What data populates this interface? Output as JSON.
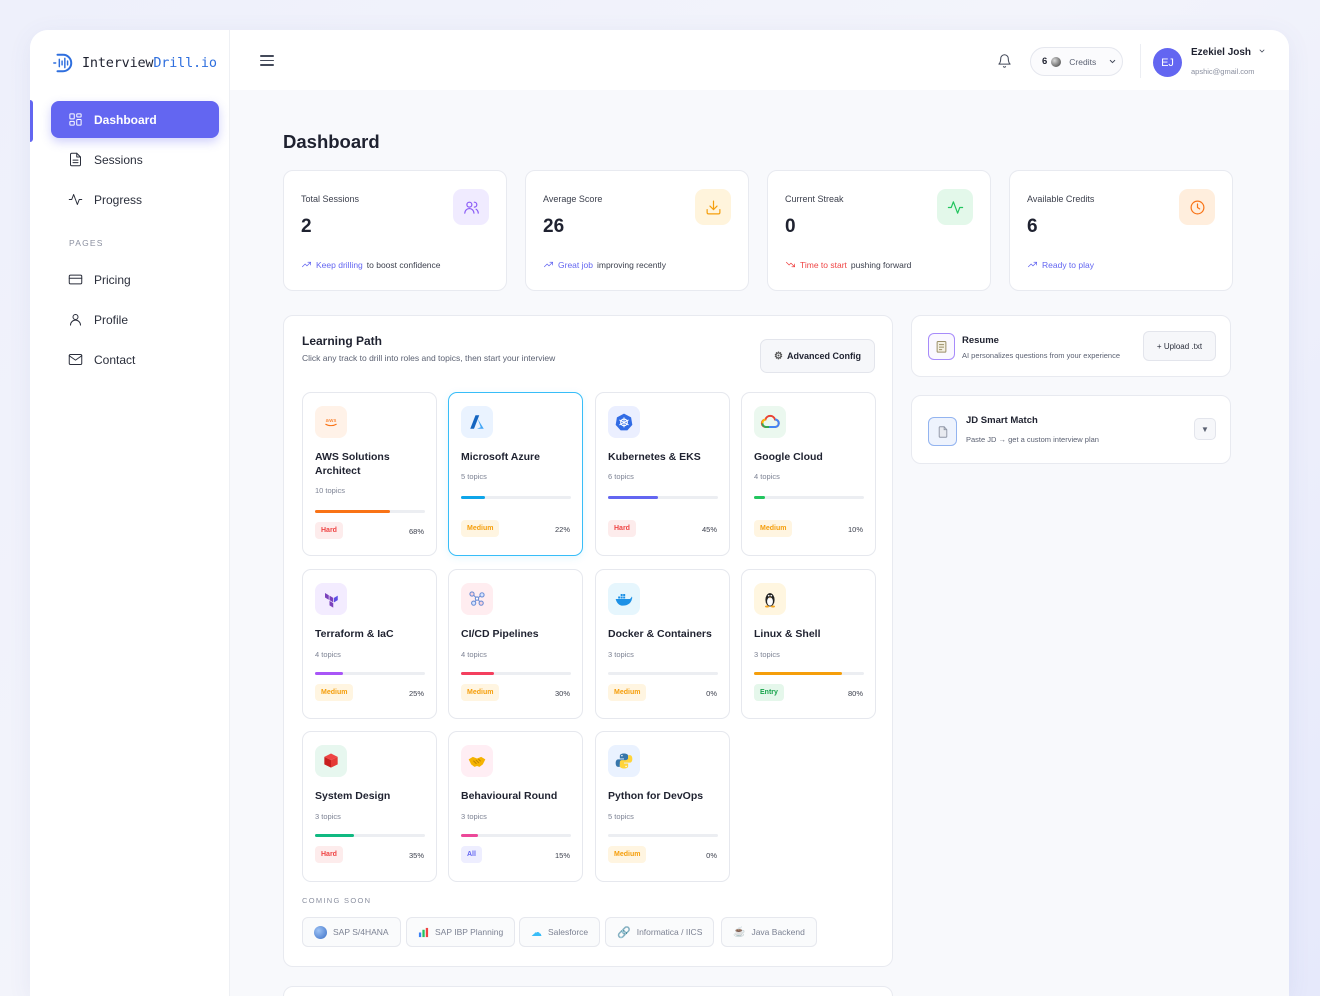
{
  "brand": {
    "name_main": "Interview",
    "name_accent": "Drill.io"
  },
  "sidebar": {
    "items": [
      {
        "label": "Dashboard",
        "icon": "grid-icon",
        "active": true
      },
      {
        "label": "Sessions",
        "icon": "document-icon",
        "active": false
      },
      {
        "label": "Progress",
        "icon": "activity-icon",
        "active": false
      }
    ],
    "section_label": "PAGES",
    "pages": [
      {
        "label": "Pricing",
        "icon": "card-icon"
      },
      {
        "label": "Profile",
        "icon": "user-icon"
      },
      {
        "label": "Contact",
        "icon": "mail-icon"
      }
    ]
  },
  "header": {
    "credits_count": "6",
    "credits_label": "Credits",
    "user": {
      "initials": "EJ",
      "name": "Ezekiel Josh",
      "email": "apshic@gmail.com"
    }
  },
  "main": {
    "title": "Dashboard",
    "stats": [
      {
        "label": "Total Sessions",
        "value": "2",
        "note_highlight": "Keep drilling",
        "note_rest": "to boost confidence",
        "icon": "users-icon",
        "icon_color": "#8b5cf6",
        "icon_bg": "#f0ebff",
        "trend": "up",
        "highlight_color": "#6366f1"
      },
      {
        "label": "Average Score",
        "value": "26",
        "note_highlight": "Great job",
        "note_rest": "improving recently",
        "icon": "download-icon",
        "icon_color": "#f59e0b",
        "icon_bg": "#fff4dc",
        "trend": "up",
        "highlight_color": "#6366f1"
      },
      {
        "label": "Current Streak",
        "value": "0",
        "note_highlight": "Time to start",
        "note_rest": "pushing forward",
        "icon": "pulse-icon",
        "icon_color": "#22c55e",
        "icon_bg": "#e3f8ea",
        "trend": "down",
        "highlight_color": "#ef4444"
      },
      {
        "label": "Available Credits",
        "value": "6",
        "note_highlight": "Ready to play",
        "note_rest": "",
        "icon": "clock-icon",
        "icon_color": "#f97316",
        "icon_bg": "#ffeedd",
        "trend": "up",
        "highlight_color": "#6366f1"
      }
    ]
  },
  "learning_path": {
    "title": "Learning Path",
    "subtitle": "Click any track to drill into roles and topics, then start your interview",
    "config_button": "Advanced Config",
    "tracks": [
      {
        "name": "AWS Solutions Architect",
        "topics": "10 topics",
        "level": "Hard",
        "percent": "68%",
        "progress": 0.68,
        "bar_color": "#f97316",
        "icon": "aws-icon",
        "icon_bg": "#fff2e8",
        "selected": false
      },
      {
        "name": "Microsoft Azure",
        "topics": "5 topics",
        "level": "Medium",
        "percent": "22%",
        "progress": 0.22,
        "bar_color": "#0ea5e9",
        "icon": "azure-icon",
        "icon_bg": "#eaf3ff",
        "selected": true
      },
      {
        "name": "Kubernetes & EKS",
        "topics": "6 topics",
        "level": "Hard",
        "percent": "45%",
        "progress": 0.45,
        "bar_color": "#6366f1",
        "icon": "kubernetes-icon",
        "icon_bg": "#ebefff",
        "selected": false
      },
      {
        "name": "Google Cloud",
        "topics": "4 topics",
        "level": "Medium",
        "percent": "10%",
        "progress": 0.1,
        "bar_color": "#22c55e",
        "icon": "google-cloud-icon",
        "icon_bg": "#ebf8ef",
        "selected": false
      },
      {
        "name": "Terraform & IaC",
        "topics": "4 topics",
        "level": "Medium",
        "percent": "25%",
        "progress": 0.25,
        "bar_color": "#a855f7",
        "icon": "terraform-icon",
        "icon_bg": "#f3ecff",
        "selected": false
      },
      {
        "name": "CI/CD Pipelines",
        "topics": "4 topics",
        "level": "Medium",
        "percent": "30%",
        "progress": 0.3,
        "bar_color": "#f43f5e",
        "icon": "pipeline-icon",
        "icon_bg": "#ffedf0",
        "selected": false
      },
      {
        "name": "Docker & Containers",
        "topics": "3 topics",
        "level": "Medium",
        "percent": "0%",
        "progress": 0.0,
        "bar_color": "#0ea5e9",
        "icon": "docker-icon",
        "icon_bg": "#e6f6fd",
        "selected": false
      },
      {
        "name": "Linux & Shell",
        "topics": "3 topics",
        "level": "Entry",
        "percent": "80%",
        "progress": 0.8,
        "bar_color": "#f59e0b",
        "icon": "linux-icon",
        "icon_bg": "#fff6e0",
        "selected": false
      },
      {
        "name": "System Design",
        "topics": "3 topics",
        "level": "Hard",
        "percent": "35%",
        "progress": 0.35,
        "bar_color": "#10b981",
        "icon": "cube-icon",
        "icon_bg": "#e7f7ef",
        "selected": false
      },
      {
        "name": "Behavioural Round",
        "topics": "3 topics",
        "level": "All",
        "percent": "15%",
        "progress": 0.15,
        "bar_color": "#ec4899",
        "icon": "handshake-icon",
        "icon_bg": "#ffeef4",
        "selected": false
      },
      {
        "name": "Python for DevOps",
        "topics": "5 topics",
        "level": "Medium",
        "percent": "0%",
        "progress": 0.0,
        "bar_color": "#3b82f6",
        "icon": "python-icon",
        "icon_bg": "#eaf2ff",
        "selected": false
      }
    ],
    "coming_soon_label": "COMING SOON",
    "coming_soon": [
      {
        "label": "SAP S/4HANA",
        "icon": "globe-icon"
      },
      {
        "label": "SAP IBP Planning",
        "icon": "bar-chart-icon"
      },
      {
        "label": "Salesforce",
        "icon": "cloud-icon"
      },
      {
        "label": "Informatica / IICS",
        "icon": "link-icon"
      },
      {
        "label": "Java Backend",
        "icon": "coffee-icon"
      }
    ]
  },
  "resume": {
    "title": "Resume",
    "subtitle": "AI personalizes questions from your experience",
    "button": "+ Upload .txt"
  },
  "jd_match": {
    "title": "JD Smart Match",
    "subtitle": "Paste JD → get a custom interview plan",
    "toggle": "▼"
  },
  "level_colors": {
    "Hard": {
      "fg": "#ef4444",
      "bg": "#fdecec"
    },
    "Medium": {
      "fg": "#f59e0b",
      "bg": "#fff5e1"
    },
    "Entry": {
      "fg": "#16a34a",
      "bg": "#e5f7eb"
    },
    "All": {
      "fg": "#6366f1",
      "bg": "#eeeeff"
    }
  }
}
